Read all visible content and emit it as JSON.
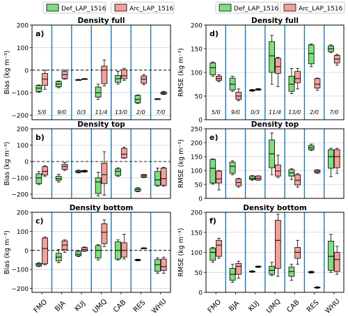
{
  "legend": {
    "entries": [
      {
        "label": "Def_LAP_1516",
        "color": "#7fdc7f"
      },
      {
        "label": "Arc_LAP_1516",
        "color": "#f4a09a"
      }
    ],
    "placement": "top-center"
  },
  "chart_data": [
    {
      "type": "box",
      "panel_label": "a)",
      "title": "Density full",
      "ylabel": "Bias (kg m⁻³)",
      "ylim": [
        -220,
        200
      ],
      "yticks": [
        -200,
        -100,
        0,
        100,
        200
      ],
      "zero_line": true,
      "categories": [
        "FMO",
        "BJA",
        "KUJ",
        "UMQ",
        "CAB",
        "RES",
        "WHU"
      ],
      "counts": [
        "5/0",
        "9/0",
        "0/3",
        "11/4",
        "13/0",
        "2/0",
        "7/0"
      ],
      "series": [
        {
          "name": "Def_LAP_1516",
          "color": "#7fdc7f",
          "boxes": [
            {
              "whislo": -98,
              "q1": -95,
              "med": -80,
              "q3": -68,
              "whishi": -66
            },
            {
              "whislo": -78,
              "q1": -74,
              "med": -62,
              "q3": -50,
              "whishi": -48
            },
            {
              "whislo": -45,
              "q1": -44,
              "med": -43,
              "q3": -42,
              "whishi": -41
            },
            {
              "whislo": -130,
              "q1": -120,
              "med": -100,
              "q3": -75,
              "whishi": -62
            },
            {
              "whislo": -62,
              "q1": -54,
              "med": -38,
              "q3": -24,
              "whishi": -5
            },
            {
              "whislo": -148,
              "q1": -145,
              "med": -130,
              "q3": -112,
              "whishi": -110
            },
            {
              "whislo": -130,
              "q1": -129,
              "med": -128,
              "q3": -127,
              "whishi": -126
            }
          ]
        },
        {
          "name": "Arc_LAP_1516",
          "color": "#f4a09a",
          "boxes": [
            {
              "whislo": -85,
              "q1": -68,
              "med": -40,
              "q3": -15,
              "whishi": 0
            },
            {
              "whislo": -40,
              "q1": -38,
              "med": -20,
              "q3": -6,
              "whishi": 0
            },
            {
              "whislo": -41,
              "q1": -40,
              "med": -39,
              "q3": -38,
              "whishi": -37
            },
            {
              "whislo": -70,
              "q1": -60,
              "med": 0,
              "q3": 18,
              "whishi": 45
            },
            {
              "whislo": -45,
              "q1": -38,
              "med": -25,
              "q3": 2,
              "whishi": 8
            },
            {
              "whislo": -65,
              "q1": -58,
              "med": -40,
              "q3": -26,
              "whishi": -20
            },
            {
              "whislo": -108,
              "q1": -106,
              "med": -102,
              "q3": -97,
              "whishi": -94
            }
          ]
        }
      ]
    },
    {
      "type": "box",
      "panel_label": "b)",
      "title": "Density top",
      "ylabel": "Bias (kg m⁻³)",
      "ylim": [
        -225,
        200
      ],
      "yticks": [
        -200,
        -100,
        0,
        100,
        200
      ],
      "zero_line": true,
      "categories": [
        "FMO",
        "BJA",
        "KUJ",
        "UMQ",
        "CAB",
        "RES",
        "WHU"
      ],
      "series": [
        {
          "name": "Def_LAP_1516",
          "color": "#7fdc7f",
          "boxes": [
            {
              "whislo": -140,
              "q1": -135,
              "med": -100,
              "q3": -75,
              "whishi": -62
            },
            {
              "whislo": -125,
              "q1": -115,
              "med": -105,
              "q3": -90,
              "whishi": -78
            },
            {
              "whislo": -70,
              "q1": -67,
              "med": -62,
              "q3": -55,
              "whishi": -52
            },
            {
              "whislo": -210,
              "q1": -195,
              "med": -125,
              "q3": -100,
              "whishi": -65
            },
            {
              "whislo": -90,
              "q1": -85,
              "med": -60,
              "q3": -45,
              "whishi": -38
            },
            {
              "whislo": -185,
              "q1": -182,
              "med": -172,
              "q3": -164,
              "whishi": -160
            },
            {
              "whislo": -150,
              "q1": -145,
              "med": -112,
              "q3": -60,
              "whishi": -40
            }
          ]
        },
        {
          "name": "Arc_LAP_1516",
          "color": "#f4a09a",
          "boxes": [
            {
              "whislo": -90,
              "q1": -82,
              "med": -60,
              "q3": -32,
              "whishi": -25
            },
            {
              "whislo": -55,
              "q1": -48,
              "med": -30,
              "q3": -17,
              "whishi": -5
            },
            {
              "whislo": -65,
              "q1": -63,
              "med": -59,
              "q3": -55,
              "whishi": -53
            },
            {
              "whislo": -205,
              "q1": -135,
              "med": -80,
              "q3": -10,
              "whishi": 60
            },
            {
              "whislo": 20,
              "q1": 22,
              "med": 45,
              "q3": 80,
              "whishi": 88
            },
            {
              "whislo": -98,
              "q1": -95,
              "med": -88,
              "q3": -80,
              "whishi": -78
            },
            {
              "whislo": -150,
              "q1": -145,
              "med": -105,
              "q3": -40,
              "whishi": -35
            }
          ]
        }
      ]
    },
    {
      "type": "box",
      "panel_label": "c)",
      "title": "Density bottom",
      "ylabel": "Bias (kg m⁻³)",
      "ylim": [
        -220,
        200
      ],
      "yticks": [
        -200,
        -100,
        0,
        100,
        200
      ],
      "zero_line": true,
      "categories": [
        "FMO",
        "BJA",
        "KUJ",
        "UMQ",
        "CAB",
        "RES",
        "WHU"
      ],
      "series": [
        {
          "name": "Def_LAP_1516",
          "color": "#7fdc7f",
          "boxes": [
            {
              "whislo": -85,
              "q1": -82,
              "med": -75,
              "q3": -68,
              "whishi": -65
            },
            {
              "whislo": -65,
              "q1": -55,
              "med": -35,
              "q3": -15,
              "whishi": 5
            },
            {
              "whislo": -32,
              "q1": -28,
              "med": -20,
              "q3": -5,
              "whishi": 0
            },
            {
              "whislo": -50,
              "q1": -40,
              "med": 0,
              "q3": 25,
              "whishi": 30
            },
            {
              "whislo": -50,
              "q1": -45,
              "med": 0,
              "q3": 45,
              "whishi": 55
            },
            {
              "whislo": -55,
              "q1": -53,
              "med": -50,
              "q3": -48,
              "whishi": -46
            },
            {
              "whislo": -120,
              "q1": -110,
              "med": -75,
              "q3": -48,
              "whishi": -40
            }
          ]
        },
        {
          "name": "Arc_LAP_1516",
          "color": "#f4a09a",
          "boxes": [
            {
              "whislo": -75,
              "q1": -70,
              "med": 10,
              "q3": 65,
              "whishi": 70
            },
            {
              "whislo": -10,
              "q1": 5,
              "med": 28,
              "q3": 50,
              "whishi": 55
            },
            {
              "whislo": -5,
              "q1": -3,
              "med": 5,
              "q3": 15,
              "whishi": 18
            },
            {
              "whislo": 20,
              "q1": 35,
              "med": 95,
              "q3": 140,
              "whishi": 160
            },
            {
              "whislo": -45,
              "q1": -35,
              "med": 0,
              "q3": 40,
              "whishi": 85
            },
            {
              "whislo": 10,
              "q1": 11,
              "med": 12,
              "q3": 13,
              "whishi": 14
            },
            {
              "whislo": -120,
              "q1": -105,
              "med": -85,
              "q3": -45,
              "whishi": -35
            }
          ]
        }
      ]
    },
    {
      "type": "box",
      "panel_label": "d)",
      "title": "Density full",
      "ylabel": "RMSE (kg m⁻³)",
      "ylim": [
        0,
        200
      ],
      "yticks": [
        0,
        50,
        100,
        150,
        200
      ],
      "zero_line": false,
      "categories": [
        "FMO",
        "BJA",
        "KUJ",
        "UMQ",
        "CAB",
        "RES",
        "WHU"
      ],
      "counts": [
        "5/0",
        "9/0",
        "0/3",
        "11/4",
        "13/0",
        "2/0",
        "7/0"
      ],
      "series": [
        {
          "name": "Def_LAP_1516",
          "color": "#7fdc7f",
          "boxes": [
            {
              "whislo": 92,
              "q1": 95,
              "med": 110,
              "q3": 120,
              "whishi": 122
            },
            {
              "whislo": 60,
              "q1": 63,
              "med": 75,
              "q3": 88,
              "whishi": 92
            },
            {
              "whislo": 60,
              "q1": 61,
              "med": 62,
              "q3": 63,
              "whishi": 64
            },
            {
              "whislo": 75,
              "q1": 100,
              "med": 135,
              "q3": 165,
              "whishi": 178
            },
            {
              "whislo": 55,
              "q1": 60,
              "med": 75,
              "q3": 92,
              "whishi": 108
            },
            {
              "whislo": 112,
              "q1": 118,
              "med": 140,
              "q3": 158,
              "whishi": 160
            },
            {
              "whislo": 142,
              "q1": 144,
              "med": 150,
              "q3": 156,
              "whishi": 158
            }
          ]
        },
        {
          "name": "Arc_LAP_1516",
          "color": "#f4a09a",
          "boxes": [
            {
              "whislo": 80,
              "q1": 83,
              "med": 87,
              "q3": 92,
              "whishi": 95
            },
            {
              "whislo": 40,
              "q1": 43,
              "med": 50,
              "q3": 58,
              "whishi": 65
            },
            {
              "whislo": 62,
              "q1": 63,
              "med": 64,
              "q3": 65,
              "whishi": 66
            },
            {
              "whislo": 70,
              "q1": 98,
              "med": 112,
              "q3": 130,
              "whishi": 132
            },
            {
              "whislo": 65,
              "q1": 78,
              "med": 87,
              "q3": 102,
              "whishi": 108
            },
            {
              "whislo": 62,
              "q1": 67,
              "med": 75,
              "q3": 87,
              "whishi": 88
            },
            {
              "whislo": 115,
              "q1": 120,
              "med": 128,
              "q3": 136,
              "whishi": 138
            }
          ]
        }
      ]
    },
    {
      "type": "box",
      "panel_label": "e)",
      "title": "Density top",
      "ylabel": "RMSE (kg m⁻³)",
      "ylim": [
        0,
        250
      ],
      "yticks": [
        0,
        50,
        100,
        150,
        200,
        250
      ],
      "zero_line": false,
      "categories": [
        "FMO",
        "BJA",
        "KUJ",
        "UMQ",
        "CAB",
        "RES",
        "WHU"
      ],
      "series": [
        {
          "name": "Def_LAP_1516",
          "color": "#7fdc7f",
          "boxes": [
            {
              "whislo": 52,
              "q1": 55,
              "med": 108,
              "q3": 140,
              "whishi": 142
            },
            {
              "whislo": 85,
              "q1": 90,
              "med": 115,
              "q3": 130,
              "whishi": 135
            },
            {
              "whislo": 65,
              "q1": 68,
              "med": 72,
              "q3": 80,
              "whishi": 82
            },
            {
              "whislo": 85,
              "q1": 110,
              "med": 160,
              "q3": 210,
              "whishi": 235
            },
            {
              "whislo": 68,
              "q1": 80,
              "med": 92,
              "q3": 103,
              "whishi": 107
            },
            {
              "whislo": 172,
              "q1": 175,
              "med": 182,
              "q3": 190,
              "whishi": 195
            },
            {
              "whislo": 78,
              "q1": 108,
              "med": 150,
              "q3": 175,
              "whishi": 180
            }
          ]
        },
        {
          "name": "Arc_LAP_1516",
          "color": "#f4a09a",
          "boxes": [
            {
              "whislo": 30,
              "q1": 55,
              "med": 70,
              "q3": 98,
              "whishi": 100
            },
            {
              "whislo": 40,
              "q1": 45,
              "med": 57,
              "q3": 70,
              "whishi": 72
            },
            {
              "whislo": 65,
              "q1": 66,
              "med": 72,
              "q3": 80,
              "whishi": 81
            },
            {
              "whislo": 75,
              "q1": 80,
              "med": 98,
              "q3": 120,
              "whishi": 155
            },
            {
              "whislo": 40,
              "q1": 48,
              "med": 65,
              "q3": 85,
              "whishi": 88
            },
            {
              "whislo": 90,
              "q1": 92,
              "med": 97,
              "q3": 102,
              "whishi": 103
            },
            {
              "whislo": 90,
              "q1": 110,
              "med": 150,
              "q3": 175,
              "whishi": 180
            }
          ]
        }
      ]
    },
    {
      "type": "box",
      "panel_label": "f)",
      "title": "Density bottom",
      "ylabel": "RMSE (kg m⁻³)",
      "ylim": [
        0,
        200
      ],
      "yticks": [
        0,
        50,
        100,
        150,
        200
      ],
      "zero_line": false,
      "categories": [
        "FMO",
        "BJA",
        "KUJ",
        "UMQ",
        "CAB",
        "RES",
        "WHU"
      ],
      "series": [
        {
          "name": "Def_LAP_1516",
          "color": "#7fdc7f",
          "boxes": [
            {
              "whislo": 75,
              "q1": 80,
              "med": 100,
              "q3": 110,
              "whishi": 112
            },
            {
              "whislo": 25,
              "q1": 30,
              "med": 45,
              "q3": 60,
              "whishi": 70
            },
            {
              "whislo": 50,
              "q1": 51,
              "med": 52,
              "q3": 53,
              "whishi": 54
            },
            {
              "whislo": 42,
              "q1": 45,
              "med": 55,
              "q3": 65,
              "whishi": 75
            },
            {
              "whislo": 30,
              "q1": 40,
              "med": 52,
              "q3": 63,
              "whishi": 70
            },
            {
              "whislo": 48,
              "q1": 49,
              "med": 50,
              "q3": 52,
              "whishi": 53
            },
            {
              "whislo": 50,
              "q1": 55,
              "med": 90,
              "q3": 128,
              "whishi": 145
            }
          ]
        },
        {
          "name": "Arc_LAP_1516",
          "color": "#f4a09a",
          "boxes": [
            {
              "whislo": 85,
              "q1": 90,
              "med": 118,
              "q3": 130,
              "whishi": 135
            },
            {
              "whislo": 35,
              "q1": 45,
              "med": 65,
              "q3": 72,
              "whishi": 78
            },
            {
              "whislo": 62,
              "q1": 63,
              "med": 64,
              "q3": 65,
              "whishi": 66
            },
            {
              "whislo": 40,
              "q1": 60,
              "med": 130,
              "q3": 180,
              "whishi": 195
            },
            {
              "whislo": 70,
              "q1": 85,
              "med": 100,
              "q3": 112,
              "whishi": 130
            },
            {
              "whislo": 10,
              "q1": 11,
              "med": 12,
              "q3": 13,
              "whishi": 14
            },
            {
              "whislo": 45,
              "q1": 52,
              "med": 82,
              "q3": 100,
              "whishi": 115
            }
          ]
        }
      ]
    }
  ]
}
